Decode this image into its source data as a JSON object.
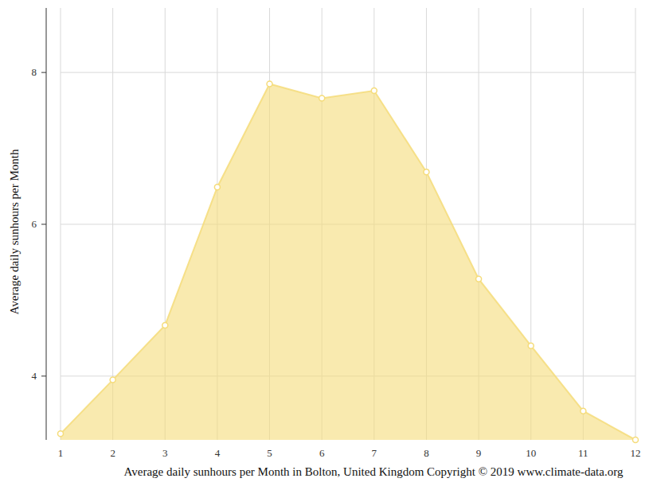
{
  "chart_data": {
    "type": "area",
    "title": "Average daily sunhours per Month in Bolton, United Kingdom Copyright © 2019 www.climate-data.org",
    "y_label": "Average daily sunhours per Month",
    "x": [
      1,
      2,
      3,
      4,
      5,
      6,
      7,
      8,
      9,
      10,
      11,
      12
    ],
    "values": [
      3.24,
      3.95,
      4.67,
      6.49,
      7.85,
      7.66,
      7.76,
      6.69,
      5.28,
      4.4,
      3.54,
      3.16
    ],
    "color": "#f5dc7a",
    "marker": "circle",
    "xlim": [
      1,
      12
    ],
    "xticks": [
      1,
      2,
      3,
      4,
      5,
      6,
      7,
      8,
      9,
      10,
      11,
      12
    ],
    "ylim": [
      3.16,
      8.85
    ],
    "yticks": [
      4,
      6,
      8
    ],
    "grid": true
  }
}
